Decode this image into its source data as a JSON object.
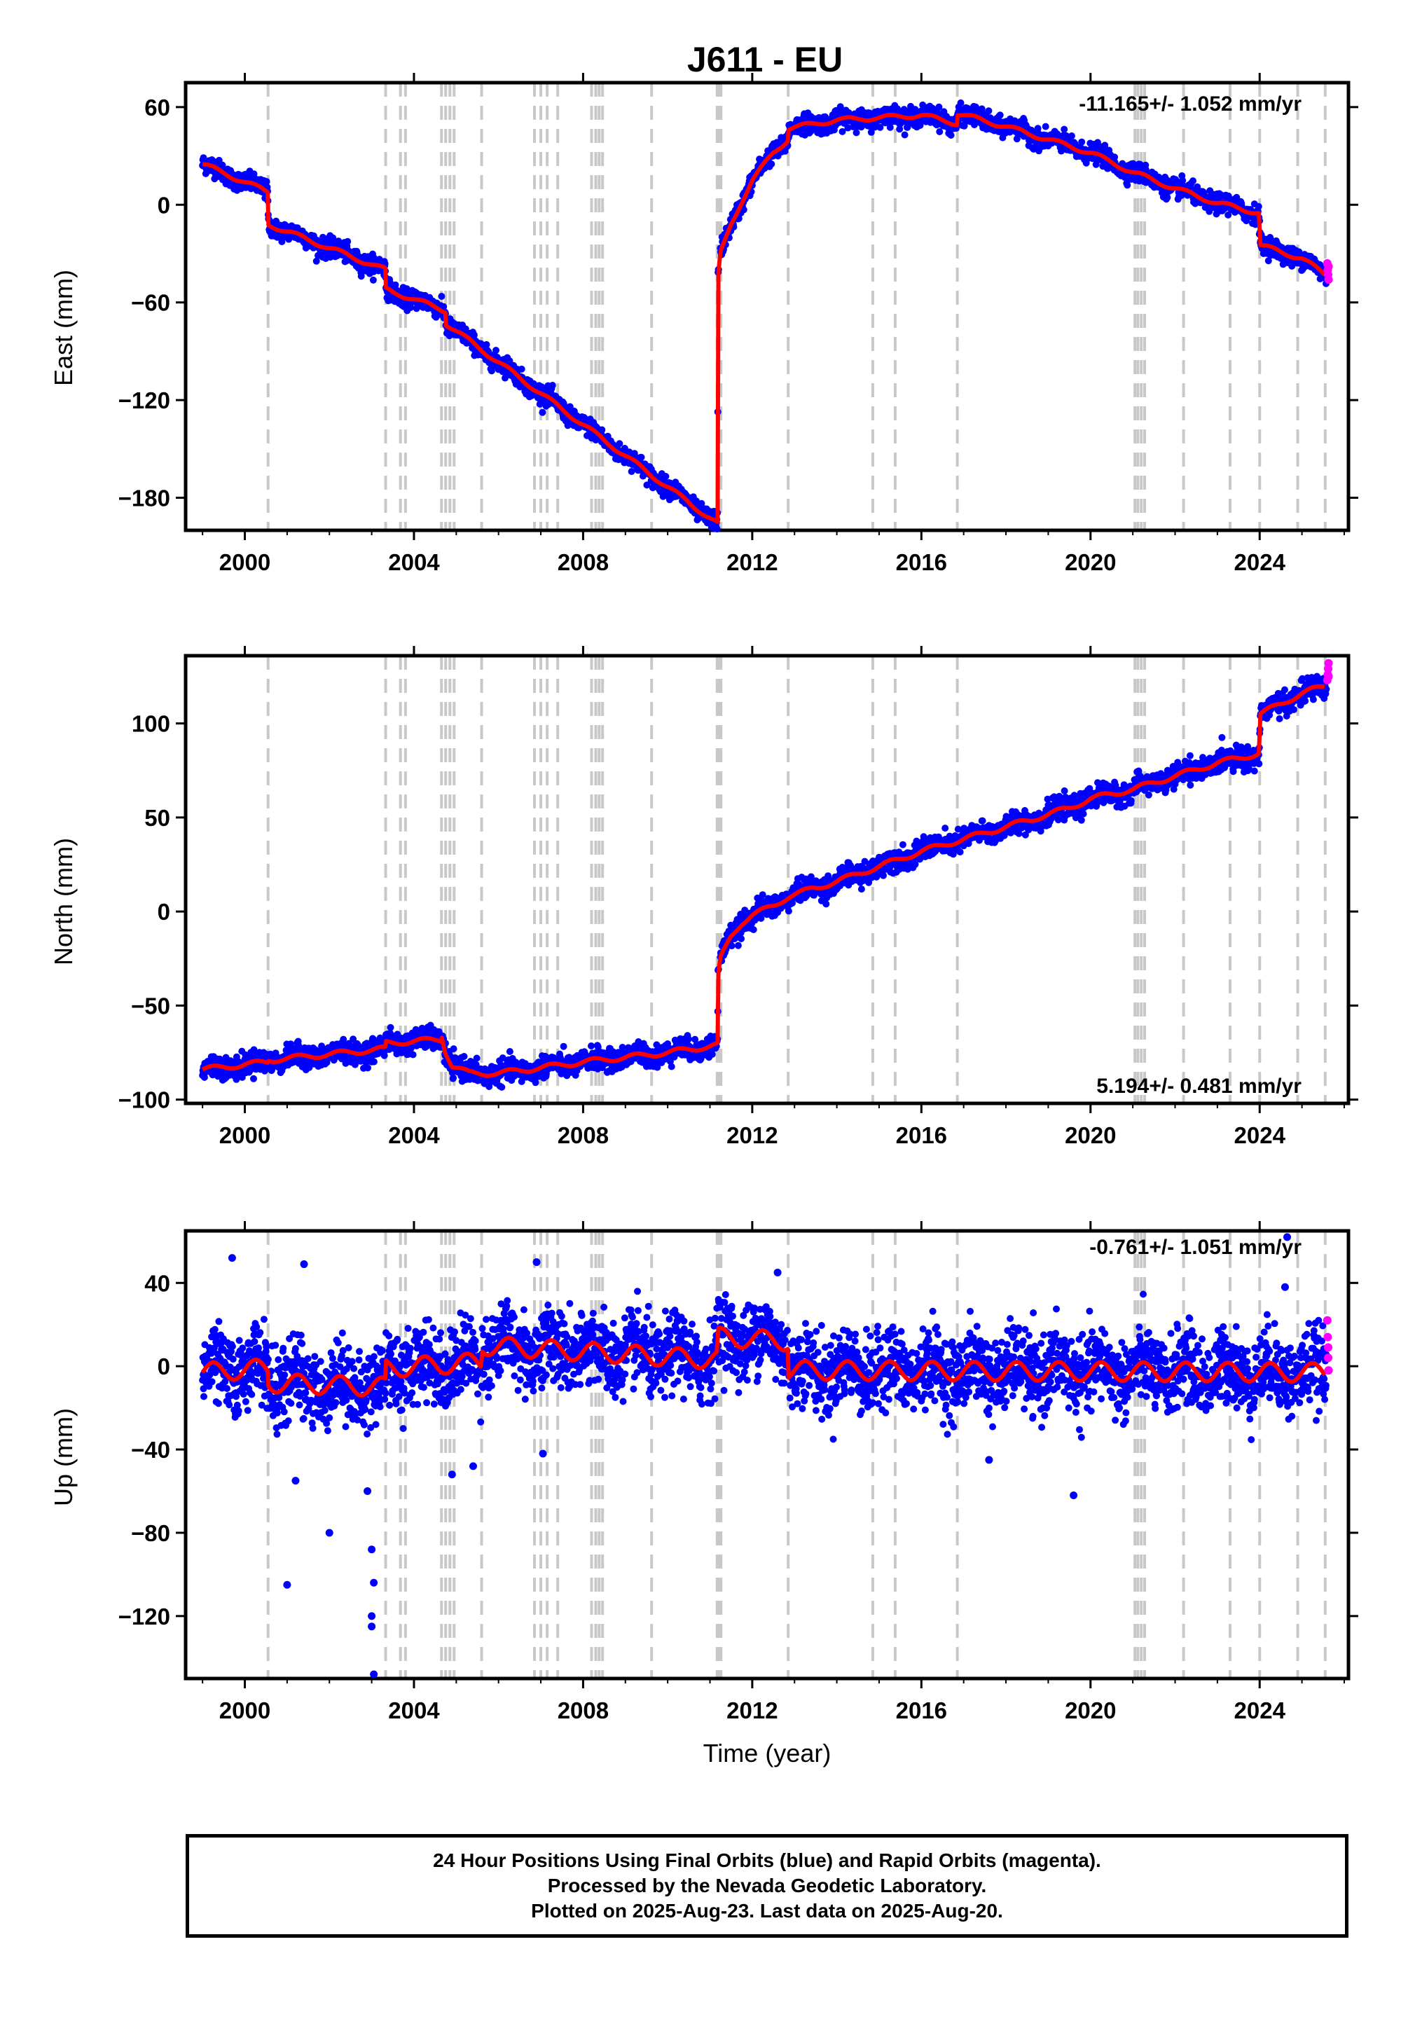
{
  "title": "J611 - EU",
  "colors": {
    "final": "#0000ff",
    "rapid": "#ff00ff",
    "model": "#ff0000",
    "event_line": "#c8c8c8"
  },
  "footer": {
    "line1": "24 Hour Positions Using Final Orbits (blue) and Rapid Orbits (magenta).",
    "line2": "Processed by the Nevada Geodetic Laboratory.",
    "line3": "Plotted on 2025-Aug-23. Last data on 2025-Aug-20."
  },
  "chart_data": [
    {
      "type": "scatter",
      "title": "J611 - EU",
      "ylabel": "East (mm)",
      "xlabel": "",
      "rate_label": "-11.165+/- 1.052 mm/yr",
      "rate_position": "top-right",
      "xlim": [
        1998.6,
        2026.1
      ],
      "ylim": [
        -200,
        75
      ],
      "x_ticks": [
        2000,
        2004,
        2008,
        2012,
        2016,
        2020,
        2024
      ],
      "y_ticks": [
        60,
        0,
        -60,
        -120,
        -180
      ],
      "event_lines": [
        2000.55,
        2003.33,
        2003.68,
        2003.8,
        2004.65,
        2004.75,
        2004.85,
        2004.95,
        2005.6,
        2006.85,
        2007.0,
        2007.15,
        2007.4,
        2008.2,
        2008.3,
        2008.38,
        2008.46,
        2009.62,
        2011.17,
        2011.22,
        2011.26,
        2012.85,
        2014.85,
        2015.38,
        2016.85,
        2021.05,
        2021.12,
        2021.2,
        2021.28,
        2022.2,
        2023.3,
        2024.0,
        2024.9,
        2025.55
      ],
      "model": {
        "x": [
          1999.0,
          2000.54,
          2000.56,
          2003.32,
          2003.34,
          2004.74,
          2004.76,
          2011.18,
          2011.19,
          2011.25,
          2011.5,
          2011.75,
          2012.0,
          2012.5,
          2012.84,
          2012.86,
          2014.0,
          2016.0,
          2016.84,
          2016.86,
          2018.0,
          2020.0,
          2021.0,
          2022.0,
          2023.0,
          2023.98,
          2024.02,
          2025.0,
          2025.55
        ],
        "y": [
          25,
          8,
          -12,
          -40,
          -52,
          -65,
          -73,
          -196,
          -45,
          -30,
          -12,
          2,
          15,
          32,
          40,
          47,
          52,
          55,
          50,
          56,
          48,
          32,
          20,
          10,
          1,
          -5,
          -25,
          -33,
          -43
        ]
      },
      "final_seasonal_amp": 1.5,
      "final_scatter_sd": 2.8,
      "final_x_range": [
        1999.0,
        2025.58
      ],
      "rapid": [
        [
          2025.6,
          -36
        ],
        [
          2025.61,
          -40
        ],
        [
          2025.62,
          -43
        ],
        [
          2025.63,
          -46
        ],
        [
          2025.63,
          -38
        ]
      ]
    },
    {
      "type": "scatter",
      "ylabel": "North (mm)",
      "xlabel": "",
      "rate_label": "5.194+/- 0.481 mm/yr",
      "rate_position": "bottom-right",
      "xlim": [
        1998.6,
        2026.1
      ],
      "ylim": [
        -102,
        136
      ],
      "x_ticks": [
        2000,
        2004,
        2008,
        2012,
        2016,
        2020,
        2024
      ],
      "y_ticks": [
        100,
        50,
        0,
        -50,
        -100
      ],
      "event_lines": [
        2000.55,
        2003.33,
        2003.68,
        2003.8,
        2004.65,
        2004.75,
        2004.85,
        2004.95,
        2005.6,
        2006.85,
        2007.0,
        2007.15,
        2007.4,
        2008.2,
        2008.3,
        2008.38,
        2008.46,
        2009.62,
        2011.17,
        2011.22,
        2011.26,
        2012.85,
        2014.85,
        2015.38,
        2016.85,
        2021.05,
        2021.12,
        2021.2,
        2021.28,
        2022.2,
        2023.3,
        2024.0,
        2024.9,
        2025.55
      ],
      "model": {
        "x": [
          1999.0,
          2000.54,
          2000.56,
          2003.32,
          2003.34,
          2004.64,
          2004.66,
          2004.74,
          2004.9,
          2005.3,
          2006.0,
          2008.0,
          2010.0,
          2011.18,
          2011.19,
          2011.25,
          2011.5,
          2011.75,
          2012.0,
          2012.5,
          2012.85,
          2014.0,
          2016.0,
          2018.0,
          2019.5,
          2020.0,
          2021.0,
          2022.0,
          2023.0,
          2023.98,
          2024.02,
          2025.0,
          2025.55
        ],
        "y": [
          -84,
          -80,
          -79,
          -73,
          -70,
          -68,
          -66,
          -74,
          -82,
          -86,
          -86,
          -80,
          -75,
          -71,
          -35,
          -25,
          -13,
          -6,
          -2,
          3,
          8,
          16,
          32,
          45,
          55,
          60,
          65,
          72,
          79,
          84,
          105,
          116,
          120
        ]
      },
      "final_seasonal_amp": 1.5,
      "final_scatter_sd": 2.8,
      "final_x_range": [
        1999.0,
        2025.58
      ],
      "rapid": [
        [
          2025.6,
          123
        ],
        [
          2025.61,
          126
        ],
        [
          2025.62,
          129
        ],
        [
          2025.63,
          132
        ],
        [
          2025.63,
          125
        ]
      ]
    },
    {
      "type": "scatter",
      "ylabel": "Up (mm)",
      "xlabel": "Time (year)",
      "rate_label": "-0.761+/- 1.051 mm/yr",
      "rate_position": "top-right",
      "xlim": [
        1998.6,
        2026.1
      ],
      "ylim": [
        -150,
        65
      ],
      "x_ticks": [
        2000,
        2004,
        2008,
        2012,
        2016,
        2020,
        2024
      ],
      "y_ticks": [
        40,
        0,
        -40,
        -80,
        -120
      ],
      "event_lines": [
        2000.55,
        2003.33,
        2003.68,
        2003.8,
        2004.65,
        2004.75,
        2004.85,
        2004.95,
        2005.6,
        2006.85,
        2007.0,
        2007.15,
        2007.4,
        2008.2,
        2008.3,
        2008.38,
        2008.46,
        2009.62,
        2011.17,
        2011.22,
        2011.26,
        2012.85,
        2014.85,
        2015.38,
        2016.85,
        2021.05,
        2021.12,
        2021.2,
        2021.28,
        2022.2,
        2023.3,
        2024.0,
        2024.9,
        2025.55
      ],
      "model": {
        "x": [
          1999.0,
          2000.54,
          2000.56,
          2003.32,
          2003.34,
          2005.58,
          2005.62,
          2011.16,
          2011.2,
          2012.84,
          2012.86,
          2025.55
        ],
        "y": [
          -3,
          -1,
          -8,
          -10,
          -1,
          2,
          10,
          3,
          14,
          12,
          -2,
          -3
        ]
      },
      "final_seasonal_amp": 5,
      "final_scatter_sd": 9,
      "final_x_range": [
        1999.0,
        2025.58
      ],
      "outliers": [
        [
          1999.7,
          52
        ],
        [
          2001.0,
          -105
        ],
        [
          2001.4,
          49
        ],
        [
          2001.2,
          -55
        ],
        [
          2002.0,
          -80
        ],
        [
          2003.0,
          -88
        ],
        [
          2003.05,
          -104
        ],
        [
          2003.0,
          -125
        ],
        [
          2003.05,
          -148
        ],
        [
          2002.9,
          -60
        ],
        [
          2003.0,
          -120
        ],
        [
          2004.9,
          -52
        ],
        [
          2005.4,
          -48
        ],
        [
          2006.9,
          50
        ],
        [
          2007.05,
          -42
        ],
        [
          2012.6,
          45
        ],
        [
          2017.6,
          -45
        ],
        [
          2019.6,
          -62
        ],
        [
          2024.65,
          62
        ],
        [
          2024.6,
          38
        ]
      ],
      "rapid": [
        [
          2025.6,
          22
        ],
        [
          2025.61,
          14
        ],
        [
          2025.62,
          9
        ],
        [
          2025.62,
          4
        ],
        [
          2025.63,
          -2
        ]
      ]
    }
  ]
}
